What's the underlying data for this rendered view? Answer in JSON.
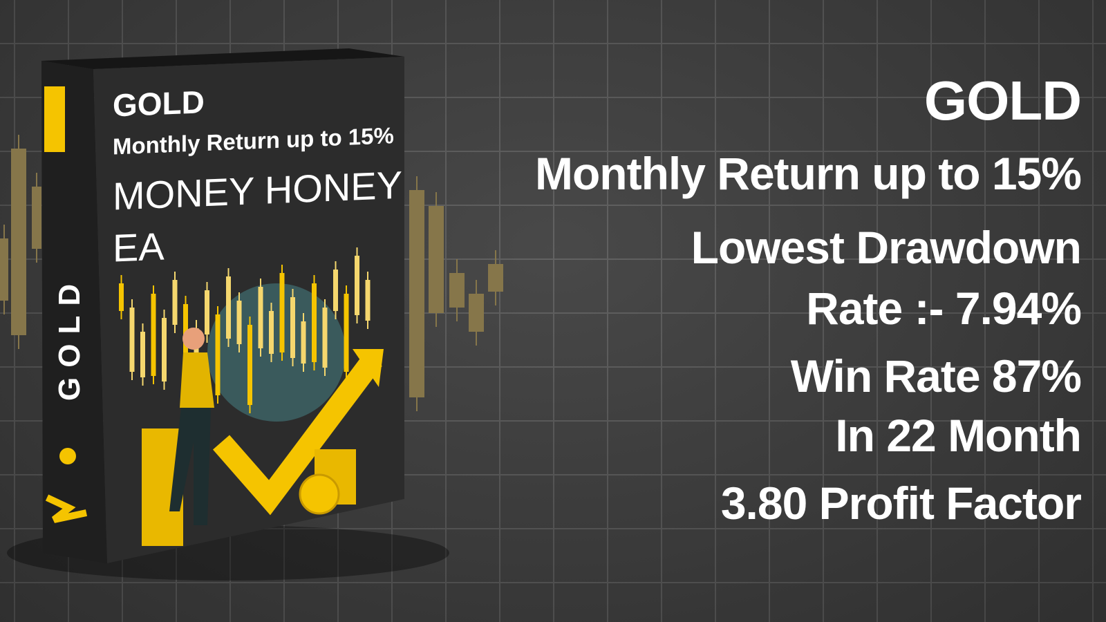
{
  "box": {
    "spine_text": "GOLD",
    "title": "GOLD",
    "subtitle": "Monthly Return up to 15%",
    "product_name_line1": "MONEY HONEY",
    "product_name_line2": "EA"
  },
  "features": {
    "title": "GOLD",
    "monthly_return": "Monthly Return up to 15%",
    "drawdown_line1": "Lowest Drawdown",
    "drawdown_line2": "Rate :- 7.94%",
    "win_rate_line1": "Win Rate 87%",
    "win_rate_line2": "In 22 Month",
    "profit_factor": "3.80 Profit Factor"
  },
  "colors": {
    "background": "#3f3f3f",
    "accent": "#f5c400",
    "candle": "#8a7a4a",
    "box": "#2b2b2b"
  }
}
